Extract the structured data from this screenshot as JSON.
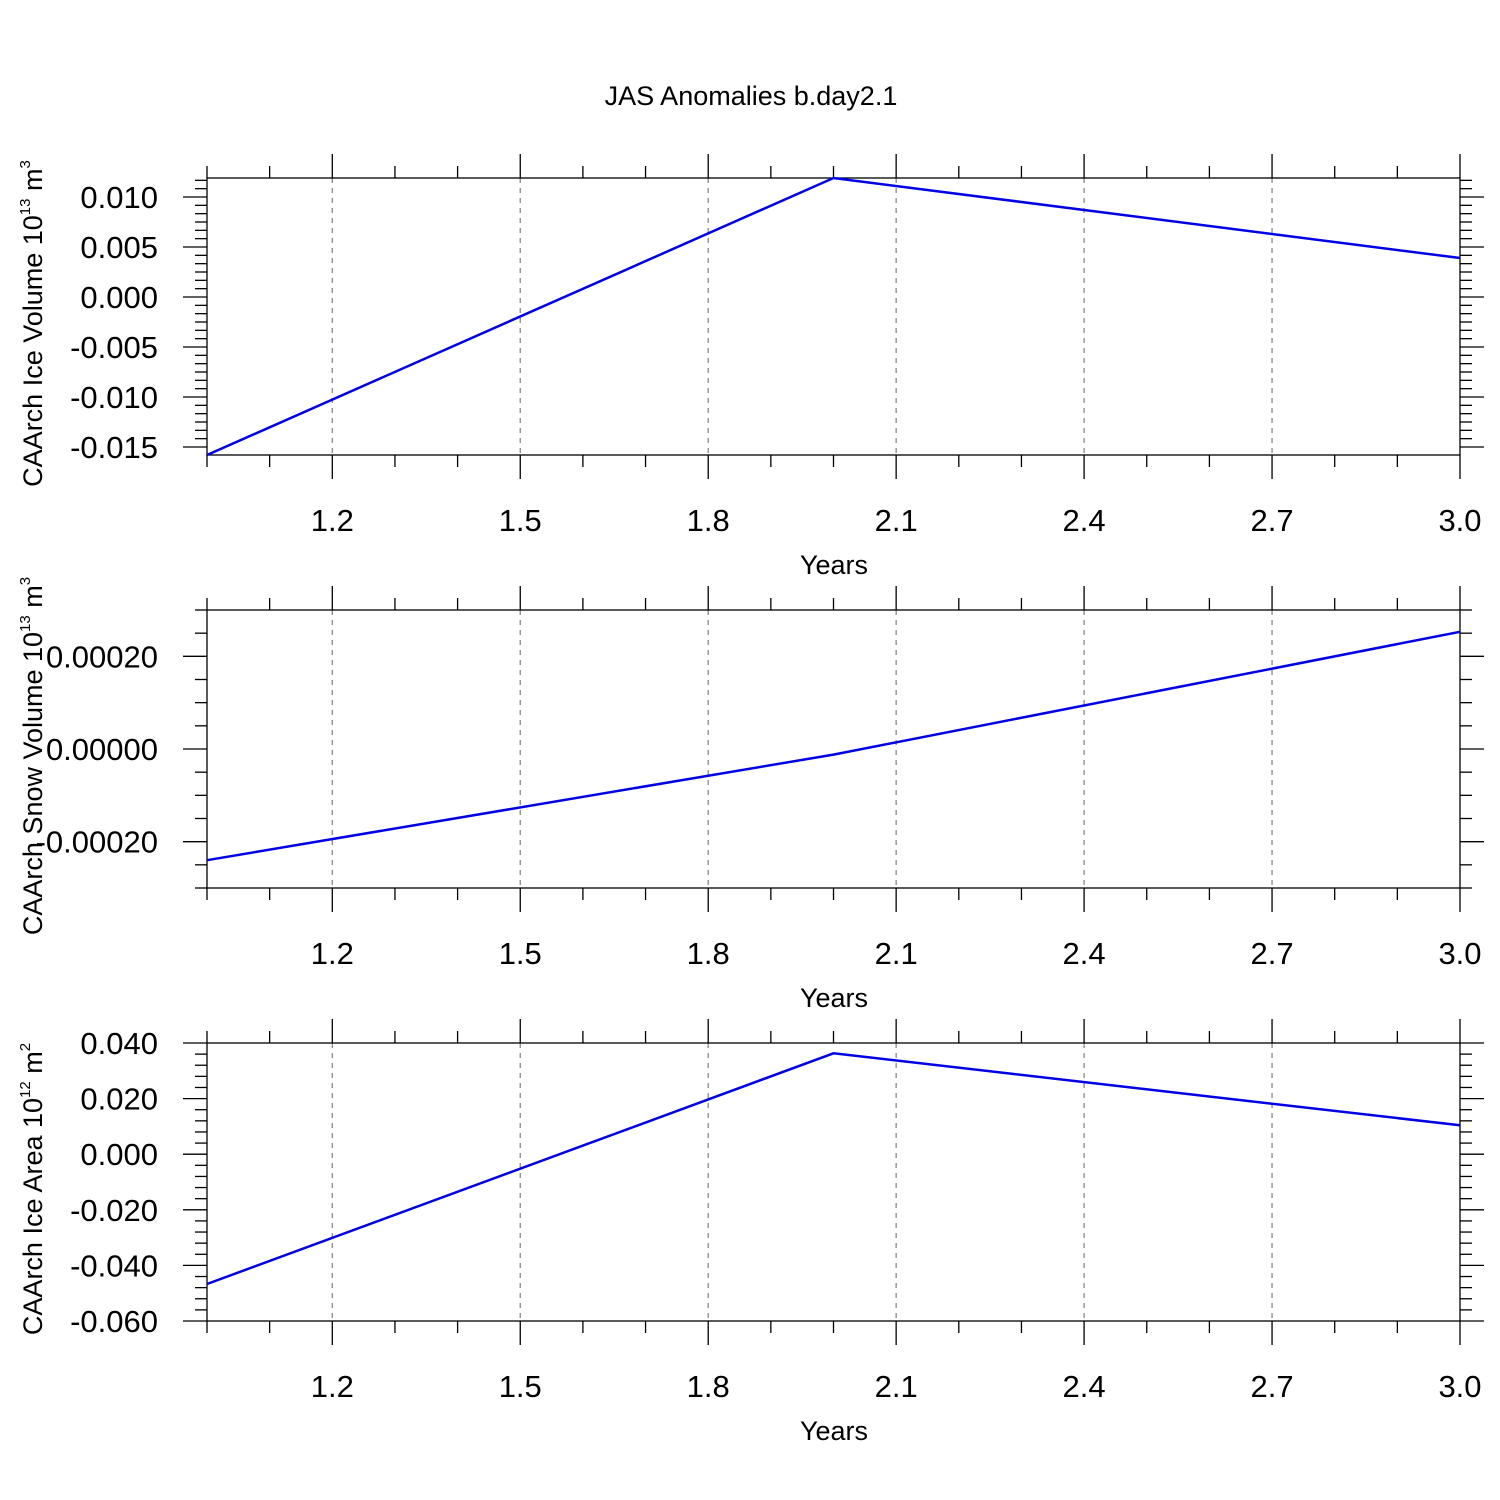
{
  "figure": {
    "title": "JAS Anomalies b.day2.1",
    "line_color": "#0000e6"
  },
  "chart_data": [
    {
      "type": "line",
      "xlabel": "Years",
      "ylabel_parts": [
        "CAArch Ice Volume 10",
        "13",
        " m",
        "3"
      ],
      "x": [
        1,
        2,
        3
      ],
      "y": [
        -0.0158,
        0.0119,
        0.0039
      ],
      "xlim": [
        1,
        3
      ],
      "ylim": [
        -0.0158,
        0.0119
      ],
      "xticks": [
        1.2,
        1.5,
        1.8,
        2.1,
        2.4,
        2.7,
        3.0
      ],
      "xtick_labels": [
        "1.2",
        "1.5",
        "1.8",
        "2.1",
        "2.4",
        "2.7",
        "3.0"
      ],
      "yticks": [
        0.01,
        0.005,
        0.0,
        -0.005,
        -0.01,
        -0.015
      ],
      "ytick_labels": [
        "0.010",
        "0.005",
        "0.000",
        "-0.005",
        "-0.010",
        "-0.015"
      ],
      "grid": "vertical-dashed"
    },
    {
      "type": "line",
      "xlabel": "Years",
      "ylabel_parts": [
        "CAArch Snow Volume 10",
        "13",
        " m",
        "3"
      ],
      "x": [
        1,
        2,
        3
      ],
      "y": [
        -0.00024,
        -1.2e-05,
        0.000253
      ],
      "xlim": [
        1,
        3
      ],
      "ylim": [
        -0.0003,
        0.0003
      ],
      "xticks": [
        1.2,
        1.5,
        1.8,
        2.1,
        2.4,
        2.7,
        3.0
      ],
      "xtick_labels": [
        "1.2",
        "1.5",
        "1.8",
        "2.1",
        "2.4",
        "2.7",
        "3.0"
      ],
      "yticks": [
        0.0002,
        0.0,
        -0.0002
      ],
      "ytick_labels": [
        "0.00020",
        "0.00000",
        "-0.00020"
      ],
      "grid": "vertical-dashed"
    },
    {
      "type": "line",
      "xlabel": "Years",
      "ylabel_parts": [
        "CAArch Ice Area 10",
        "12",
        " m",
        "2"
      ],
      "x": [
        1,
        2,
        3
      ],
      "y": [
        -0.0467,
        0.0363,
        0.0104
      ],
      "xlim": [
        1,
        3
      ],
      "ylim": [
        -0.06,
        0.04
      ],
      "xticks": [
        1.2,
        1.5,
        1.8,
        2.1,
        2.4,
        2.7,
        3.0
      ],
      "xtick_labels": [
        "1.2",
        "1.5",
        "1.8",
        "2.1",
        "2.4",
        "2.7",
        "3.0"
      ],
      "yticks": [
        0.04,
        0.02,
        0.0,
        -0.02,
        -0.04,
        -0.06
      ],
      "ytick_labels": [
        "0.040",
        "0.020",
        "0.000",
        "-0.020",
        "-0.040",
        "-0.060"
      ],
      "grid": "vertical-dashed"
    }
  ]
}
